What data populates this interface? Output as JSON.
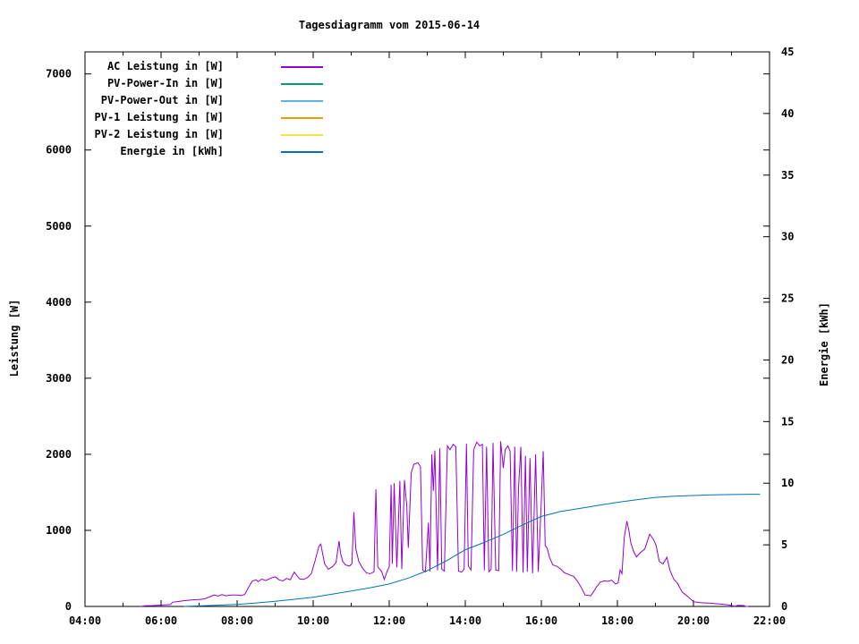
{
  "title": "Tagesdiagramm vom 2015-06-14",
  "chart_data": {
    "type": "line",
    "title": "Tagesdiagramm vom 2015-06-14",
    "legend_position": "top-left-inside",
    "grid": false,
    "x_axis": {
      "label": "",
      "unit": "time",
      "range_hours": [
        4,
        22
      ],
      "major_tick_labels": [
        "04:00",
        "06:00",
        "08:00",
        "10:00",
        "12:00",
        "14:00",
        "16:00",
        "18:00",
        "20:00",
        "22:00"
      ],
      "minor_tick_interval_hours": 1
    },
    "y_axis": {
      "label": "Leistung [W]",
      "tick_values": [
        0,
        1000,
        2000,
        3000,
        4000,
        5000,
        6000,
        7000
      ],
      "range": [
        0,
        7290
      ]
    },
    "y2_axis": {
      "label": "Energie [kWh]",
      "tick_values": [
        0,
        5,
        10,
        15,
        20,
        25,
        30,
        35,
        40,
        45
      ],
      "range": [
        0,
        45
      ]
    },
    "series": [
      {
        "name": "ac-leistung",
        "label": "AC Leistung in [W]",
        "color": "#9400d3",
        "axis": "y1",
        "points": [
          [
            5.45,
            0
          ],
          [
            5.6,
            8
          ],
          [
            5.8,
            12
          ],
          [
            6.0,
            18
          ],
          [
            6.25,
            25
          ],
          [
            6.3,
            55
          ],
          [
            6.45,
            65
          ],
          [
            6.6,
            75
          ],
          [
            6.8,
            85
          ],
          [
            7.0,
            90
          ],
          [
            7.15,
            100
          ],
          [
            7.3,
            130
          ],
          [
            7.4,
            150
          ],
          [
            7.5,
            135
          ],
          [
            7.6,
            155
          ],
          [
            7.7,
            140
          ],
          [
            7.85,
            150
          ],
          [
            8.0,
            150
          ],
          [
            8.1,
            142
          ],
          [
            8.2,
            158
          ],
          [
            8.3,
            250
          ],
          [
            8.4,
            335
          ],
          [
            8.5,
            350
          ],
          [
            8.55,
            325
          ],
          [
            8.65,
            360
          ],
          [
            8.75,
            340
          ],
          [
            8.9,
            375
          ],
          [
            9.0,
            390
          ],
          [
            9.1,
            350
          ],
          [
            9.2,
            335
          ],
          [
            9.3,
            368
          ],
          [
            9.4,
            350
          ],
          [
            9.5,
            452
          ],
          [
            9.55,
            420
          ],
          [
            9.65,
            360
          ],
          [
            9.75,
            355
          ],
          [
            9.85,
            380
          ],
          [
            9.95,
            430
          ],
          [
            10.05,
            600
          ],
          [
            10.15,
            790
          ],
          [
            10.2,
            820
          ],
          [
            10.3,
            560
          ],
          [
            10.4,
            490
          ],
          [
            10.5,
            520
          ],
          [
            10.6,
            575
          ],
          [
            10.68,
            860
          ],
          [
            10.72,
            700
          ],
          [
            10.78,
            590
          ],
          [
            10.85,
            545
          ],
          [
            10.95,
            530
          ],
          [
            11.02,
            560
          ],
          [
            11.07,
            1240
          ],
          [
            11.12,
            760
          ],
          [
            11.2,
            590
          ],
          [
            11.3,
            500
          ],
          [
            11.4,
            440
          ],
          [
            11.5,
            430
          ],
          [
            11.6,
            455
          ],
          [
            11.65,
            1540
          ],
          [
            11.7,
            520
          ],
          [
            11.8,
            460
          ],
          [
            11.87,
            355
          ],
          [
            11.95,
            470
          ],
          [
            12.0,
            520
          ],
          [
            12.05,
            1600
          ],
          [
            12.08,
            560
          ],
          [
            12.13,
            1620
          ],
          [
            12.2,
            515
          ],
          [
            12.28,
            1650
          ],
          [
            12.33,
            490
          ],
          [
            12.4,
            1660
          ],
          [
            12.46,
            1320
          ],
          [
            12.5,
            770
          ],
          [
            12.58,
            1760
          ],
          [
            12.65,
            1870
          ],
          [
            12.75,
            1890
          ],
          [
            12.82,
            1840
          ],
          [
            12.88,
            480
          ],
          [
            12.95,
            455
          ],
          [
            13.03,
            1100
          ],
          [
            13.07,
            460
          ],
          [
            13.12,
            2000
          ],
          [
            13.16,
            1520
          ],
          [
            13.2,
            2050
          ],
          [
            13.27,
            475
          ],
          [
            13.33,
            2080
          ],
          [
            13.38,
            490
          ],
          [
            13.45,
            465
          ],
          [
            13.53,
            2110
          ],
          [
            13.6,
            2060
          ],
          [
            13.68,
            2130
          ],
          [
            13.75,
            2100
          ],
          [
            13.82,
            465
          ],
          [
            13.9,
            450
          ],
          [
            13.97,
            490
          ],
          [
            14.03,
            2140
          ],
          [
            14.08,
            530
          ],
          [
            14.15,
            480
          ],
          [
            14.22,
            2060
          ],
          [
            14.3,
            2160
          ],
          [
            14.38,
            2110
          ],
          [
            14.45,
            2130
          ],
          [
            14.5,
            475
          ],
          [
            14.56,
            2100
          ],
          [
            14.62,
            455
          ],
          [
            14.68,
            490
          ],
          [
            14.73,
            2150
          ],
          [
            14.8,
            480
          ],
          [
            14.88,
            470
          ],
          [
            14.93,
            2170
          ],
          [
            15.0,
            1820
          ],
          [
            15.05,
            2060
          ],
          [
            15.12,
            2110
          ],
          [
            15.18,
            2040
          ],
          [
            15.24,
            465
          ],
          [
            15.3,
            2100
          ],
          [
            15.35,
            455
          ],
          [
            15.4,
            1560
          ],
          [
            15.46,
            2100
          ],
          [
            15.52,
            445
          ],
          [
            15.58,
            1980
          ],
          [
            15.63,
            455
          ],
          [
            15.7,
            1950
          ],
          [
            15.77,
            435
          ],
          [
            15.85,
            2000
          ],
          [
            15.92,
            455
          ],
          [
            16.0,
            1400
          ],
          [
            16.05,
            2040
          ],
          [
            16.1,
            800
          ],
          [
            16.15,
            770
          ],
          [
            16.22,
            640
          ],
          [
            16.3,
            545
          ],
          [
            16.4,
            530
          ],
          [
            16.5,
            495
          ],
          [
            16.6,
            445
          ],
          [
            16.72,
            420
          ],
          [
            16.85,
            395
          ],
          [
            16.95,
            330
          ],
          [
            17.05,
            250
          ],
          [
            17.15,
            150
          ],
          [
            17.3,
            140
          ],
          [
            17.45,
            255
          ],
          [
            17.55,
            320
          ],
          [
            17.65,
            335
          ],
          [
            17.75,
            330
          ],
          [
            17.85,
            345
          ],
          [
            17.95,
            295
          ],
          [
            18.02,
            310
          ],
          [
            18.07,
            480
          ],
          [
            18.12,
            430
          ],
          [
            18.18,
            900
          ],
          [
            18.25,
            1120
          ],
          [
            18.3,
            1000
          ],
          [
            18.35,
            840
          ],
          [
            18.42,
            730
          ],
          [
            18.5,
            650
          ],
          [
            18.6,
            705
          ],
          [
            18.72,
            755
          ],
          [
            18.85,
            950
          ],
          [
            18.95,
            880
          ],
          [
            19.02,
            800
          ],
          [
            19.1,
            590
          ],
          [
            19.2,
            560
          ],
          [
            19.3,
            645
          ],
          [
            19.38,
            480
          ],
          [
            19.48,
            360
          ],
          [
            19.58,
            305
          ],
          [
            19.7,
            190
          ],
          [
            19.85,
            130
          ],
          [
            20.0,
            62
          ],
          [
            20.2,
            48
          ],
          [
            20.45,
            42
          ],
          [
            20.7,
            30
          ],
          [
            20.9,
            22
          ],
          [
            21.0,
            12
          ],
          [
            21.08,
            2
          ],
          [
            21.18,
            14
          ],
          [
            21.32,
            12
          ],
          [
            21.38,
            0
          ],
          [
            21.45,
            0
          ]
        ]
      },
      {
        "name": "pv-power-in",
        "label": "PV-Power-In in [W]",
        "color": "#009e73",
        "axis": "y1",
        "points": []
      },
      {
        "name": "pv-power-out",
        "label": "PV-Power-Out in [W]",
        "color": "#56b4e9",
        "axis": "y1",
        "points": []
      },
      {
        "name": "pv1-leistung",
        "label": "PV-1 Leistung in [W]",
        "color": "#e69f00",
        "axis": "y1",
        "points": []
      },
      {
        "name": "pv2-leistung",
        "label": "PV-2 Leistung in [W]",
        "color": "#f0e442",
        "axis": "y1",
        "points": []
      },
      {
        "name": "energie",
        "label": "Energie in [kWh]",
        "color": "#0072b2",
        "axis": "y2",
        "points": [
          [
            6.6,
            0
          ],
          [
            7.0,
            0.04
          ],
          [
            7.5,
            0.1
          ],
          [
            8.0,
            0.17
          ],
          [
            8.5,
            0.28
          ],
          [
            9.0,
            0.42
          ],
          [
            9.5,
            0.58
          ],
          [
            10.0,
            0.75
          ],
          [
            10.5,
            1.0
          ],
          [
            11.0,
            1.25
          ],
          [
            11.5,
            1.52
          ],
          [
            12.0,
            1.82
          ],
          [
            12.5,
            2.3
          ],
          [
            13.0,
            2.9
          ],
          [
            13.5,
            3.7
          ],
          [
            14.0,
            4.6
          ],
          [
            14.5,
            5.2
          ],
          [
            15.0,
            5.85
          ],
          [
            15.5,
            6.6
          ],
          [
            16.0,
            7.3
          ],
          [
            16.5,
            7.7
          ],
          [
            17.0,
            7.95
          ],
          [
            17.5,
            8.2
          ],
          [
            18.0,
            8.45
          ],
          [
            18.5,
            8.65
          ],
          [
            19.0,
            8.85
          ],
          [
            19.5,
            8.95
          ],
          [
            20.0,
            9.0
          ],
          [
            20.5,
            9.05
          ],
          [
            21.0,
            9.08
          ],
          [
            21.5,
            9.1
          ],
          [
            21.75,
            9.1
          ]
        ]
      }
    ]
  }
}
